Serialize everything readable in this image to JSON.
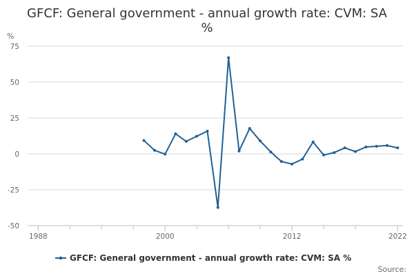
{
  "chart_data": {
    "type": "line",
    "title": "GFCF: General government - annual growth rate: CVM: SA %",
    "title_lines": [
      "GFCF: General government - annual growth rate: CVM: SA",
      "%"
    ],
    "ylabel": "%",
    "xlabel": "",
    "ylim": [
      -50,
      75
    ],
    "y_ticks": [
      75,
      50,
      25,
      0,
      -25,
      -50
    ],
    "xlim": [
      1987,
      2022.5
    ],
    "x_tick_labels": [
      1988,
      2000,
      2012,
      2022
    ],
    "x_minor_ticks": [
      1991,
      1994,
      1997,
      2003,
      2006,
      2009,
      2015,
      2018
    ],
    "grid": true,
    "legend_position": "bottom",
    "series": [
      {
        "name": "GFCF: General government - annual growth rate: CVM: SA %",
        "color": "#206095",
        "x": [
          1998,
          1999,
          2000,
          2001,
          2002,
          2003,
          2004,
          2005,
          2006,
          2007,
          2008,
          2009,
          2010,
          2011,
          2012,
          2013,
          2014,
          2015,
          2016,
          2017,
          2018,
          2019,
          2020,
          2021,
          2022
        ],
        "values": [
          9.3,
          2.5,
          -0.2,
          14,
          8.7,
          12.3,
          15.8,
          -37.3,
          67,
          2,
          17.7,
          9,
          1.3,
          -5.3,
          -7.1,
          -3.6,
          8.3,
          -0.8,
          0.9,
          4.2,
          1.6,
          4.8,
          5.3,
          5.8,
          4.2
        ]
      }
    ]
  },
  "source_label": "Source:"
}
